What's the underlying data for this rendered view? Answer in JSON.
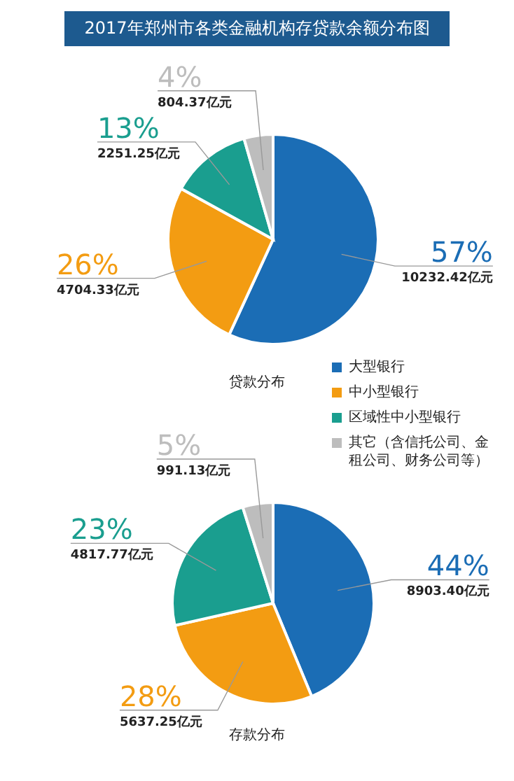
{
  "chart_data": [
    {
      "type": "pie",
      "title": "2017年郑州市各类金融机构存贷款余额分布图",
      "xlabel": "贷款分布",
      "categories": [
        "大型银行",
        "中小型银行",
        "区域性中小型银行",
        "其它（含信托公司、金租公司、财务公司等）"
      ],
      "values": [
        10232.42,
        4704.33,
        2251.25,
        804.37
      ],
      "value_labels": [
        "57%\n10232.42亿元",
        "26%\n4704.33亿元",
        "13%\n2251.25亿元",
        "4%\n804.37亿元"
      ],
      "colors": [
        "#1b6db5",
        "#f39c12",
        "#1a9e8f",
        "#bdbdbd"
      ],
      "legend": "bottom right"
    },
    {
      "type": "pie",
      "xlabel": "存款分布",
      "categories": [
        null,
        null,
        null,
        null
      ],
      "values": [
        8903.4,
        5637.25,
        4817.77,
        991.13
      ],
      "value_labels": [
        "44%\n8903.40亿元",
        "28%\n5637.25亿元",
        "23%\n4817.77亿元",
        "5%\n991.13亿元"
      ],
      "colors": [
        "#1b6db5",
        "#f39c12",
        "#1a9e8f",
        "#bdbdbd"
      ]
    }
  ]
}
